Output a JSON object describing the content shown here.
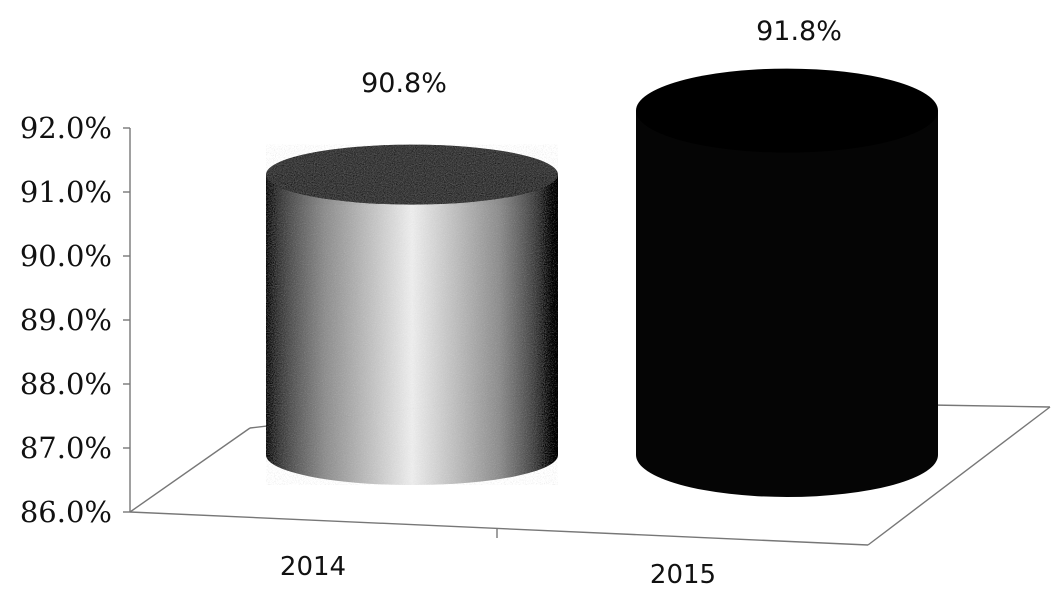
{
  "chart_data": {
    "type": "bar",
    "style": "3d-cylinder",
    "categories": [
      "2014",
      "2015"
    ],
    "values": [
      90.8,
      91.8
    ],
    "data_labels": [
      "90.8%",
      "91.8%"
    ],
    "y_ticks": [
      "92.0%",
      "91.0%",
      "90.0%",
      "89.0%",
      "88.0%",
      "87.0%",
      "86.0%"
    ],
    "ylim": [
      86.0,
      92.0
    ],
    "grid": false,
    "legend": "none",
    "colors": {
      "2014": "#bdbdbd",
      "2015": "#000000",
      "axis": "#777777"
    }
  }
}
